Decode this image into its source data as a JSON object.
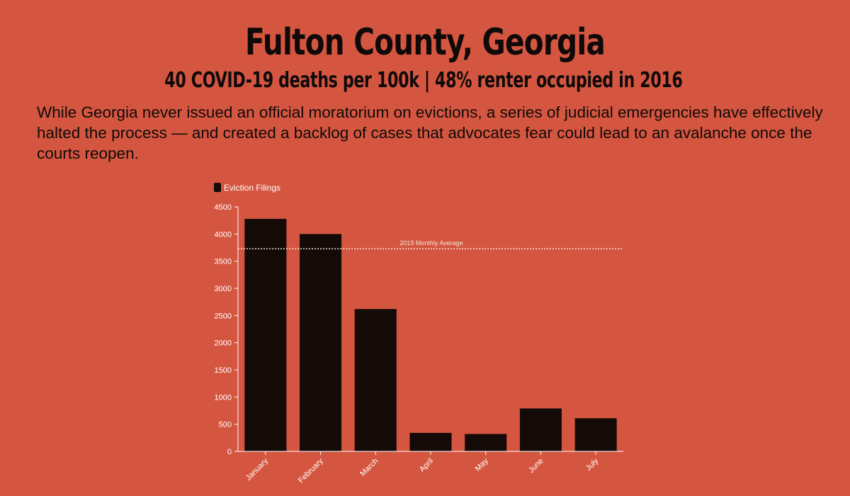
{
  "header": {
    "title": "Fulton County, Georgia",
    "subtitle": "40 COVID-19 deaths per 100k | 48% renter occupied in 2016",
    "intro": "While Georgia never issued an official moratorium on evictions, a series of judicial emergencies have effectively halted the process — and created a backlog of cases that advocates fear could lead to an avalanche once the courts reopen."
  },
  "colors": {
    "background": "#d55640",
    "bar": "#140b08",
    "axis": "#ffffff",
    "reference_line": "#f3e6d2"
  },
  "chart_data": {
    "type": "bar",
    "categories": [
      "January",
      "February",
      "March",
      "April",
      "May",
      "June",
      "July"
    ],
    "series": [
      {
        "name": "Eviction Filings",
        "values": [
          4280,
          4000,
          2620,
          340,
          320,
          790,
          610
        ]
      }
    ],
    "ylim": [
      0,
      4500
    ],
    "yticks": [
      0,
      500,
      1000,
      1500,
      2000,
      2500,
      3000,
      3500,
      4000,
      4500
    ],
    "xlabel": "",
    "ylabel": "",
    "grid": false,
    "legend": "top-left",
    "reference_line": {
      "label": "2019 Monthly Average",
      "value": 3730
    }
  }
}
